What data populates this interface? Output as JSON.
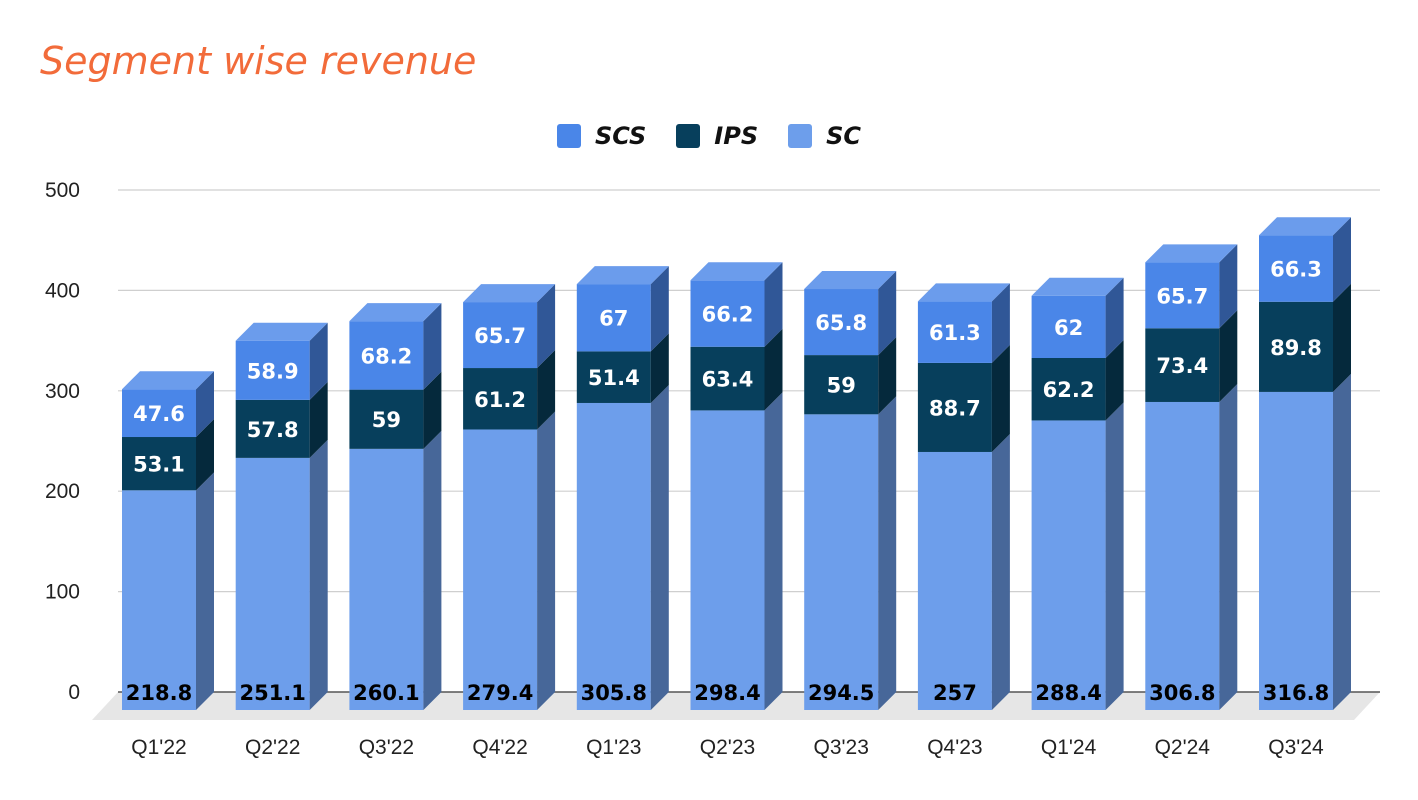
{
  "chart_data": {
    "type": "bar",
    "stacked": true,
    "three_d": true,
    "title": "Segment wise revenue",
    "categories": [
      "Q1'22",
      "Q2'22",
      "Q3'22",
      "Q4'22",
      "Q1'23",
      "Q2'23",
      "Q3'23",
      "Q4'23",
      "Q1'24",
      "Q2'24",
      "Q3'24"
    ],
    "series": [
      {
        "name": "SC",
        "values": [
          218.8,
          251.1,
          260.1,
          279.4,
          305.8,
          298.4,
          294.5,
          257,
          288.4,
          306.8,
          316.8
        ],
        "color": "#6d9eeb"
      },
      {
        "name": "IPS",
        "values": [
          53.1,
          57.8,
          59,
          61.2,
          51.4,
          63.4,
          59,
          88.7,
          62.2,
          73.4,
          89.8
        ],
        "color": "#073f5c"
      },
      {
        "name": "SCS",
        "values": [
          47.6,
          58.9,
          68.2,
          65.7,
          67,
          66.2,
          65.8,
          61.3,
          62,
          65.7,
          66.3
        ],
        "color": "#4a86e8"
      }
    ],
    "legend_order": [
      "SCS",
      "IPS",
      "SC"
    ],
    "legend_position": "top",
    "y_ticks": [
      "0",
      "100",
      "200",
      "300",
      "400",
      "500"
    ],
    "ylim": [
      0,
      500
    ],
    "grid": true
  }
}
